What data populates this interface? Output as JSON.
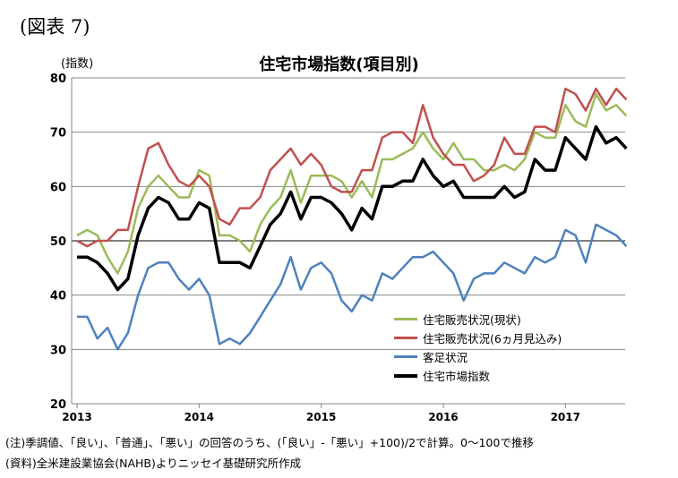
{
  "figure_label": "(図表 7)",
  "notes": {
    "note": "(注)季調値、「良い」、「普通」、「悪い」の回答のうち、(「良い」-「悪い」+100)/2で計算。0～100で推移",
    "source": "(資料)全米建設業協会(NAHB)よりニッセイ基礎研究所作成"
  },
  "chart_data": {
    "type": "line",
    "title": "住宅市場指数(項目別)",
    "ylabel": "(指数)",
    "xlabel": "",
    "ylim": [
      20,
      80
    ],
    "yticks": [
      20,
      30,
      40,
      50,
      60,
      70,
      80
    ],
    "xticks": [
      "2013",
      "2014",
      "2015",
      "2016",
      "2017"
    ],
    "reference_line": 50,
    "grid": true,
    "legend_position": "bottom-right",
    "x_start": "2013-01",
    "series": [
      {
        "name": "住宅販売状況(現状)",
        "color": "#9bbb59",
        "width": 2.5,
        "values": [
          51,
          52,
          51,
          47,
          44,
          48,
          56,
          60,
          62,
          60,
          58,
          58,
          63,
          62,
          51,
          51,
          50,
          48,
          53,
          56,
          58,
          63,
          57,
          62,
          62,
          62,
          61,
          58,
          61,
          58,
          65,
          65,
          66,
          67,
          70,
          67,
          65,
          68,
          65,
          65,
          63,
          63,
          64,
          63,
          65,
          70,
          69,
          69,
          75,
          72,
          71,
          77,
          74,
          75,
          73
        ]
      },
      {
        "name": "住宅販売状況(6ヵ月見込み)",
        "color": "#c0504d",
        "width": 2.5,
        "values": [
          50,
          49,
          50,
          50,
          52,
          52,
          60,
          67,
          68,
          64,
          61,
          60,
          62,
          60,
          54,
          53,
          56,
          56,
          58,
          63,
          65,
          67,
          64,
          66,
          64,
          60,
          59,
          59,
          63,
          63,
          69,
          70,
          70,
          68,
          75,
          69,
          66,
          64,
          64,
          61,
          62,
          64,
          69,
          66,
          66,
          71,
          71,
          70,
          78,
          77,
          74,
          78,
          75,
          78,
          76
        ]
      },
      {
        "name": "客足状況",
        "color": "#4f81bd",
        "width": 2.5,
        "values": [
          36,
          36,
          32,
          34,
          30,
          33,
          40,
          45,
          46,
          46,
          43,
          41,
          43,
          40,
          31,
          32,
          31,
          33,
          36,
          39,
          42,
          47,
          41,
          45,
          46,
          44,
          39,
          37,
          40,
          39,
          44,
          43,
          45,
          47,
          47,
          48,
          46,
          44,
          39,
          43,
          44,
          44,
          46,
          45,
          44,
          47,
          46,
          47,
          52,
          51,
          46,
          53,
          52,
          51,
          49
        ]
      },
      {
        "name": "住宅市場指数",
        "color": "#000000",
        "width": 3.5,
        "values": [
          47,
          47,
          46,
          44,
          41,
          43,
          51,
          56,
          58,
          57,
          54,
          54,
          57,
          56,
          46,
          46,
          46,
          45,
          49,
          53,
          55,
          59,
          54,
          58,
          58,
          57,
          55,
          52,
          56,
          54,
          60,
          60,
          61,
          61,
          65,
          62,
          60,
          61,
          58,
          58,
          58,
          58,
          60,
          58,
          59,
          65,
          63,
          63,
          69,
          67,
          65,
          71,
          68,
          69,
          67
        ]
      }
    ]
  }
}
